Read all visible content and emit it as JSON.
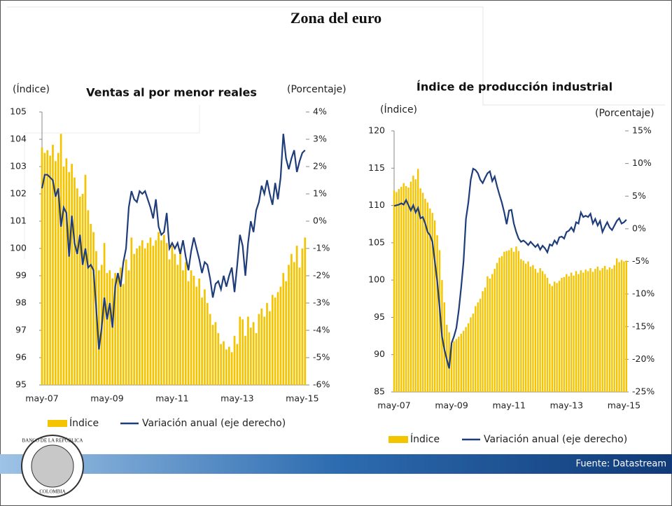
{
  "title": "Zona del euro",
  "footer": "Fuente: Datastream",
  "logo": {
    "top": "BANCO DE LA REPÚBLICA",
    "bottom": "COLOMBIA"
  },
  "chart_data": [
    {
      "type": "combo",
      "title": "Ventas al por menor reales",
      "y_label": "(Índice)",
      "y2_label": "(Porcentaje)",
      "categories": [
        "may-07",
        null,
        null,
        null,
        null,
        null,
        null,
        null,
        null,
        null,
        null,
        null,
        null,
        null,
        null,
        null,
        null,
        null,
        null,
        null,
        null,
        null,
        null,
        null,
        "may-09",
        null,
        null,
        null,
        null,
        null,
        null,
        null,
        null,
        null,
        null,
        null,
        null,
        null,
        null,
        null,
        null,
        null,
        null,
        null,
        null,
        null,
        null,
        null,
        "may-11",
        null,
        null,
        null,
        null,
        null,
        null,
        null,
        null,
        null,
        null,
        null,
        null,
        null,
        null,
        null,
        null,
        null,
        null,
        null,
        null,
        null,
        null,
        null,
        "may-13",
        null,
        null,
        null,
        null,
        null,
        null,
        null,
        null,
        null,
        null,
        null,
        null,
        null,
        null,
        null,
        null,
        null,
        null,
        null,
        null,
        null,
        null,
        null,
        "may-15",
        null
      ],
      "ylim": [
        95,
        105
      ],
      "yticks": [
        95,
        96,
        97,
        98,
        99,
        100,
        101,
        102,
        103,
        104,
        105
      ],
      "y2lim": [
        -6,
        4
      ],
      "y2ticks": [
        {
          "value": -6,
          "label": "-6%"
        },
        {
          "value": -5,
          "label": "-5%"
        },
        {
          "value": -4,
          "label": "-4%"
        },
        {
          "value": -3,
          "label": "-3%"
        },
        {
          "value": -2,
          "label": "-2%"
        },
        {
          "value": -1,
          "label": "-1%"
        },
        {
          "value": 0,
          "label": "0%"
        },
        {
          "value": 1,
          "label": "1%"
        },
        {
          "value": 2,
          "label": "2%"
        },
        {
          "value": 3,
          "label": "3%"
        },
        {
          "value": 4,
          "label": "4%"
        }
      ],
      "series": [
        {
          "name": "Índice",
          "type": "bar",
          "color": "#f5c400",
          "values": [
            103.7,
            103.5,
            103.6,
            103.4,
            103.8,
            103.2,
            103.5,
            104.2,
            103.0,
            103.3,
            102.8,
            103.1,
            102.6,
            102.2,
            101.9,
            102.0,
            102.7,
            101.4,
            100.9,
            100.6,
            99.9,
            99.2,
            99.4,
            100.2,
            99.1,
            99.2,
            98.9,
            99.1,
            99.0,
            99.3,
            98.7,
            99.6,
            99.2,
            100.4,
            99.8,
            100.0,
            100.1,
            100.3,
            100.0,
            100.2,
            100.4,
            100.1,
            100.3,
            100.6,
            100.3,
            100.5,
            100.2,
            99.6,
            100.1,
            99.8,
            99.4,
            100.0,
            99.2,
            99.5,
            98.8,
            99.2,
            99.0,
            98.6,
            98.9,
            98.2,
            98.5,
            98.0,
            97.6,
            97.2,
            97.3,
            96.9,
            96.5,
            96.6,
            96.3,
            96.4,
            96.2,
            96.8,
            96.5,
            97.5,
            97.4,
            96.8,
            97.5,
            97.1,
            97.3,
            96.9,
            97.6,
            97.8,
            97.5,
            98.0,
            97.7,
            98.3,
            98.2,
            98.4,
            98.6,
            99.1,
            98.8,
            99.4,
            99.8,
            99.5,
            100.1,
            99.3,
            100.0,
            100.4
          ]
        },
        {
          "name": "Variación anual (eje derecho)",
          "type": "line",
          "axis": "y2",
          "color": "#1f3d7a",
          "values": [
            1.2,
            1.7,
            1.7,
            1.6,
            1.5,
            0.9,
            1.2,
            -0.2,
            0.5,
            0.3,
            -1.3,
            0.2,
            -0.8,
            -1.2,
            -0.5,
            -1.6,
            -1.0,
            -1.7,
            -1.6,
            -1.8,
            -3.2,
            -4.7,
            -3.9,
            -2.8,
            -3.6,
            -3.0,
            -3.9,
            -2.4,
            -1.9,
            -2.4,
            -1.5,
            -1.0,
            0.5,
            1.1,
            0.8,
            0.7,
            1.1,
            1.0,
            1.1,
            0.8,
            0.5,
            0.1,
            0.8,
            -0.2,
            -0.5,
            -0.4,
            0.3,
            -1.0,
            -0.8,
            -1.0,
            -0.8,
            -1.2,
            -0.7,
            -1.3,
            -1.8,
            -1.1,
            -0.6,
            -1.0,
            -1.4,
            -1.9,
            -1.5,
            -1.6,
            -2.1,
            -2.8,
            -2.3,
            -2.2,
            -2.5,
            -2.0,
            -2.4,
            -2.0,
            -1.7,
            -2.6,
            -1.6,
            -0.5,
            -0.9,
            -2.0,
            -0.8,
            0.0,
            -0.4,
            0.4,
            0.7,
            1.3,
            1.0,
            1.5,
            1.0,
            0.6,
            1.4,
            0.8,
            1.6,
            3.2,
            2.3,
            1.9,
            2.3,
            2.6,
            1.8,
            2.2,
            2.5,
            2.6
          ]
        }
      ]
    },
    {
      "type": "combo",
      "title": "Índice de producción industrial",
      "y_label": "(Índice)",
      "y2_label": "(Porcentaje)",
      "categories": [
        "may-07",
        null,
        null,
        null,
        null,
        null,
        null,
        null,
        null,
        null,
        null,
        null,
        null,
        null,
        null,
        null,
        null,
        null,
        null,
        null,
        null,
        null,
        null,
        null,
        "may-09",
        null,
        null,
        null,
        null,
        null,
        null,
        null,
        null,
        null,
        null,
        null,
        null,
        null,
        null,
        null,
        null,
        null,
        null,
        null,
        null,
        null,
        null,
        null,
        "may-11",
        null,
        null,
        null,
        null,
        null,
        null,
        null,
        null,
        null,
        null,
        null,
        null,
        null,
        null,
        null,
        null,
        null,
        null,
        null,
        null,
        null,
        null,
        null,
        "may-13",
        null,
        null,
        null,
        null,
        null,
        null,
        null,
        null,
        null,
        null,
        null,
        null,
        null,
        null,
        null,
        null,
        null,
        null,
        null,
        null,
        null,
        null,
        null,
        "may-15",
        null
      ],
      "ylim": [
        85,
        120
      ],
      "yticks": [
        85,
        90,
        95,
        100,
        105,
        110,
        115,
        120
      ],
      "y2lim": [
        -25,
        15
      ],
      "y2ticks": [
        {
          "value": -25,
          "label": "-25%"
        },
        {
          "value": -20,
          "label": "-20%"
        },
        {
          "value": -15,
          "label": "-15%"
        },
        {
          "value": -10,
          "label": "-10%"
        },
        {
          "value": -5,
          "label": "-5%"
        },
        {
          "value": 0,
          "label": "0%"
        },
        {
          "value": 5,
          "label": "5%"
        },
        {
          "value": 10,
          "label": "10%"
        },
        {
          "value": 15,
          "label": "15%"
        }
      ],
      "series": [
        {
          "name": "Índice",
          "type": "bar",
          "color": "#f5c400",
          "values": [
            112,
            111.8,
            112.2,
            112.5,
            113,
            112.6,
            112.4,
            113.2,
            114,
            113.5,
            114.9,
            112.3,
            111.7,
            110.9,
            110.4,
            109.6,
            109.0,
            108,
            106,
            104,
            100,
            97,
            94,
            93,
            91.5,
            91.8,
            92.1,
            92.4,
            92.8,
            93.2,
            93.7,
            94.2,
            95,
            95.5,
            96.5,
            97,
            97.5,
            98.5,
            99,
            100.5,
            100.2,
            100.8,
            101.5,
            102.3,
            103,
            103.2,
            103.8,
            103.9,
            104,
            104.3,
            103.8,
            104.5,
            103.9,
            102.8,
            102.6,
            102.2,
            102.5,
            101.8,
            102,
            101.5,
            101,
            101.6,
            101.2,
            100.8,
            100.3,
            99.5,
            99.2,
            99.8,
            99.6,
            99.9,
            100.3,
            100.4,
            100.8,
            100.5,
            101,
            100.6,
            101.2,
            100.8,
            101.3,
            101,
            101.4,
            101.2,
            101.6,
            101.1,
            101.5,
            101.8,
            101.3,
            101.6,
            101.9,
            101.4,
            101.7,
            101.5,
            102,
            102.9,
            102.4,
            102.7,
            102.5,
            102.6
          ]
        },
        {
          "name": "Variación anual (eje derecho)",
          "type": "line",
          "axis": "y2",
          "color": "#1f3d7a",
          "values": [
            3.5,
            3.6,
            3.7,
            3.9,
            3.7,
            4.4,
            3.6,
            2.8,
            3.6,
            2.5,
            3.2,
            1.6,
            1.8,
            0.8,
            -0.5,
            -1.0,
            -2.0,
            -5.0,
            -8.0,
            -12.0,
            -16.5,
            -18.5,
            -20.0,
            -21.4,
            -17.5,
            -16.5,
            -15.2,
            -12.5,
            -9.0,
            -5.0,
            1.5,
            4.0,
            7.5,
            9.2,
            9.0,
            8.5,
            7.5,
            7.0,
            7.8,
            8.5,
            8.8,
            7.3,
            8.0,
            6.5,
            5.2,
            4.0,
            2.5,
            0.7,
            2.8,
            2.9,
            0.8,
            -0.5,
            -1.5,
            -2.0,
            -1.8,
            -2.1,
            -2.5,
            -2.0,
            -2.4,
            -2.8,
            -2.4,
            -3.2,
            -2.6,
            -3.0,
            -3.6,
            -2.4,
            -2.6,
            -1.8,
            -2.3,
            -1.3,
            -1.2,
            -1.5,
            -0.5,
            -0.3,
            0.2,
            -0.4,
            1.0,
            0.8,
            2.5,
            1.8,
            2.0,
            1.8,
            2.3,
            0.8,
            1.5,
            0.5,
            1.2,
            -0.5,
            0.3,
            1.0,
            0.2,
            -0.2,
            0.5,
            1.2,
            1.6,
            0.8,
            1.0,
            1.4
          ]
        }
      ]
    }
  ]
}
